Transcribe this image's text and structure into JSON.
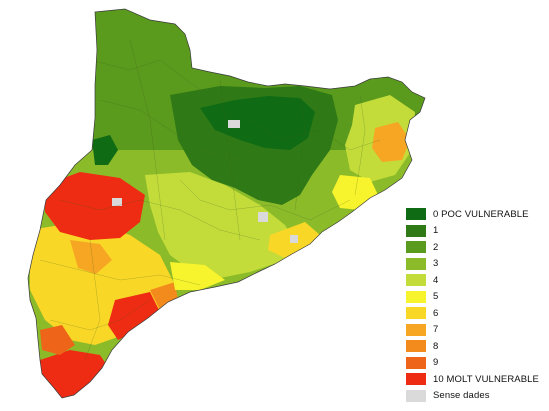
{
  "map": {
    "region_name": "Catalunya",
    "legend": [
      {
        "label": "0  POC VULNERABLE",
        "color": "#0f6b14"
      },
      {
        "label": "1",
        "color": "#2f7a16"
      },
      {
        "label": "2",
        "color": "#5a9a1d"
      },
      {
        "label": "3",
        "color": "#8cbb2a"
      },
      {
        "label": "4",
        "color": "#c3dc3a"
      },
      {
        "label": "5",
        "color": "#f7f32c"
      },
      {
        "label": "6",
        "color": "#f9d727"
      },
      {
        "label": "7",
        "color": "#f6a623"
      },
      {
        "label": "8",
        "color": "#f28a1c"
      },
      {
        "label": "9",
        "color": "#ee6419"
      },
      {
        "label": "10  MOLT VULNERABLE",
        "color": "#ee2c13"
      },
      {
        "label": "Sense dades",
        "color": "#dadada"
      }
    ]
  }
}
